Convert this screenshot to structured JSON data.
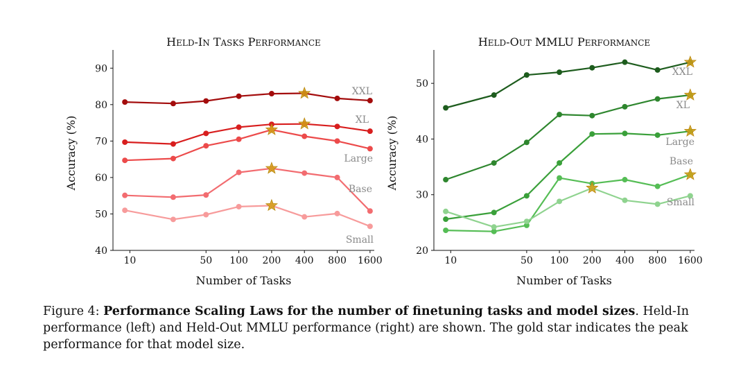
{
  "chart_data": [
    {
      "type": "line",
      "title": "Held-In Tasks Performance",
      "xlabel": "Number of Tasks",
      "ylabel": "Accuracy (%)",
      "xscale": "log",
      "xticks": [
        10,
        50,
        100,
        200,
        400,
        800,
        1600
      ],
      "yticks": [
        40,
        50,
        60,
        70,
        80,
        90
      ],
      "ylim": [
        40,
        95
      ],
      "x": [
        9,
        25,
        50,
        100,
        200,
        400,
        800,
        1600
      ],
      "series": [
        {
          "name": "XXL",
          "color": "#a30c0c",
          "values": [
            80.7,
            80.3,
            81.0,
            82.3,
            83.0,
            83.1,
            81.7,
            81.1
          ],
          "peak_index": 5
        },
        {
          "name": "XL",
          "color": "#d81e1e",
          "values": [
            69.7,
            69.2,
            72.1,
            73.8,
            74.6,
            74.7,
            74.0,
            72.7
          ],
          "peak_index": 5
        },
        {
          "name": "Large",
          "color": "#ec4a4a",
          "values": [
            64.7,
            65.2,
            68.7,
            70.5,
            73.1,
            71.3,
            70.0,
            67.9
          ],
          "peak_index": 4
        },
        {
          "name": "Base",
          "color": "#f26c70",
          "values": [
            55.1,
            54.6,
            55.2,
            61.4,
            62.5,
            61.2,
            60.0,
            50.8
          ],
          "peak_index": 4
        },
        {
          "name": "Small",
          "color": "#f79b9b",
          "values": [
            51.0,
            48.5,
            49.8,
            52.0,
            52.3,
            49.2,
            50.1,
            46.6
          ],
          "peak_index": 4
        }
      ]
    },
    {
      "type": "line",
      "title": "Held-Out MMLU Performance",
      "xlabel": "Number of Tasks",
      "ylabel": "Accuracy (%)",
      "xscale": "log",
      "xticks": [
        10,
        50,
        100,
        200,
        400,
        800,
        1600
      ],
      "yticks": [
        20,
        30,
        40,
        50
      ],
      "ylim": [
        20,
        56
      ],
      "x": [
        9,
        25,
        50,
        100,
        200,
        400,
        800,
        1600
      ],
      "series": [
        {
          "name": "XXL",
          "color": "#1d5c1d",
          "values": [
            45.6,
            47.9,
            51.5,
            52.0,
            52.8,
            53.8,
            52.4,
            53.8
          ],
          "peak_index": 7
        },
        {
          "name": "XL",
          "color": "#2e862e",
          "values": [
            32.7,
            35.7,
            39.4,
            44.4,
            44.2,
            45.8,
            47.2,
            47.9
          ],
          "peak_index": 7
        },
        {
          "name": "Large",
          "color": "#3aa03a",
          "values": [
            25.6,
            26.8,
            29.8,
            35.7,
            40.9,
            41.0,
            40.7,
            41.4
          ],
          "peak_index": 7
        },
        {
          "name": "Base",
          "color": "#55bd55",
          "values": [
            23.6,
            23.4,
            24.5,
            33.0,
            32.0,
            32.7,
            31.5,
            33.6
          ],
          "peak_index": 7
        },
        {
          "name": "Small",
          "color": "#8fd38f",
          "values": [
            27.0,
            24.2,
            25.2,
            28.8,
            31.2,
            29.0,
            28.3,
            29.8
          ],
          "peak_index": 4
        }
      ]
    }
  ],
  "caption": {
    "prefix": "Figure 4: ",
    "bold": "Performance Scaling Laws for the number of finetuning tasks and model sizes",
    "rest": ". Held-In performance (left) and Held-Out MMLU performance (right) are shown. The gold star indicates the peak performance for that model size."
  },
  "star_color": "#d4a017"
}
